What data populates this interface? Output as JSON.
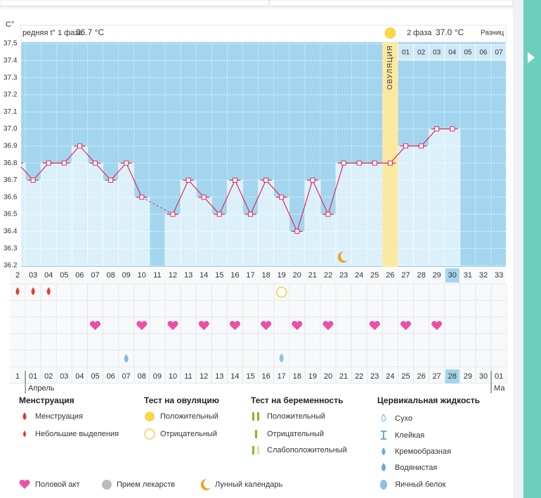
{
  "chart_data": {
    "type": "line",
    "y_axis_label": "C°",
    "phase1_label": "редняя t° 1 фаза",
    "phase1_value": "36.7 °C",
    "phase2_label": "2 фаза",
    "phase2_value": "37.0 °C",
    "difference_label": "Разниц",
    "ovulation_label": "ОВУЛЯЦИЯ",
    "ovulation_index": 24,
    "categories": [
      "2",
      "03",
      "04",
      "05",
      "06",
      "07",
      "08",
      "09",
      "10",
      "11",
      "12",
      "13",
      "14",
      "15",
      "16",
      "17",
      "18",
      "19",
      "20",
      "21",
      "22",
      "23",
      "24",
      "25",
      "26",
      "27",
      "28",
      "29",
      "30",
      "31",
      "32",
      "33"
    ],
    "values": [
      36.8,
      36.7,
      36.8,
      36.8,
      36.9,
      36.8,
      36.7,
      36.8,
      36.6,
      null,
      36.5,
      36.7,
      36.6,
      36.5,
      36.7,
      36.5,
      36.7,
      36.6,
      36.4,
      36.7,
      36.5,
      36.8,
      36.8,
      36.8,
      36.8,
      36.9,
      36.9,
      37.0,
      37.0,
      null,
      null,
      null
    ],
    "ylim": [
      36.2,
      37.5
    ],
    "yticks": [
      36.2,
      36.3,
      36.4,
      36.5,
      36.6,
      36.7,
      36.8,
      36.9,
      {
        "value": 37,
        "label": "37.0"
      },
      37.1,
      37.2,
      37.3,
      37.4,
      37.5
    ],
    "grid": true,
    "color": "#e0285a",
    "bar_color": "#dcf0fa",
    "background_color": "#a3d6ee",
    "phase2_start_index": 25,
    "phase2_days": [
      "01",
      "02",
      "03",
      "04",
      "05",
      "06",
      "07"
    ],
    "today_index": 28,
    "dates": [
      "1",
      "01",
      "02",
      "03",
      "04",
      "05",
      "06",
      "07",
      "08",
      "09",
      "10",
      "11",
      "12",
      "13",
      "14",
      "15",
      "16",
      "17",
      "18",
      "19",
      "20",
      "21",
      "22",
      "23",
      "24",
      "25",
      "26",
      "27",
      "28",
      "29",
      "30",
      "01"
    ],
    "red_date_indices": [
      4,
      5,
      11,
      12,
      18,
      19,
      25,
      26
    ],
    "months": [
      {
        "label": "Апрель",
        "index": 1
      },
      {
        "label": "Ма",
        "index": 31
      }
    ],
    "markers": {
      "menstruation": [
        0,
        1,
        2
      ],
      "ovulation_test_negative": [
        17
      ],
      "intercourse": [
        5,
        8,
        10,
        12,
        14,
        16,
        18,
        20,
        23,
        25,
        27
      ],
      "cervical_creamy": [
        7
      ],
      "cervical_watery": [
        17
      ],
      "moon": [
        21
      ]
    }
  },
  "legend": {
    "menstruation": {
      "title": "Менструация",
      "items": [
        "Менструация",
        "Небольшие выделения"
      ]
    },
    "ovulation_test": {
      "title": "Тест на овуляцию",
      "items": [
        "Положительный",
        "Отрицательный"
      ]
    },
    "pregnancy_test": {
      "title": "Тест на беременность",
      "items": [
        "Положительный",
        "Отрицательный",
        "Слабоположительный"
      ]
    },
    "cervical_fluid": {
      "title": "Цервикальная жидкость",
      "items": [
        "Сухо",
        "Клейкая",
        "Кремообразная",
        "Водянистая",
        "Яичный белок"
      ]
    },
    "other": [
      "Половой акт",
      "Прием лекарств",
      "Лунный календарь"
    ]
  }
}
